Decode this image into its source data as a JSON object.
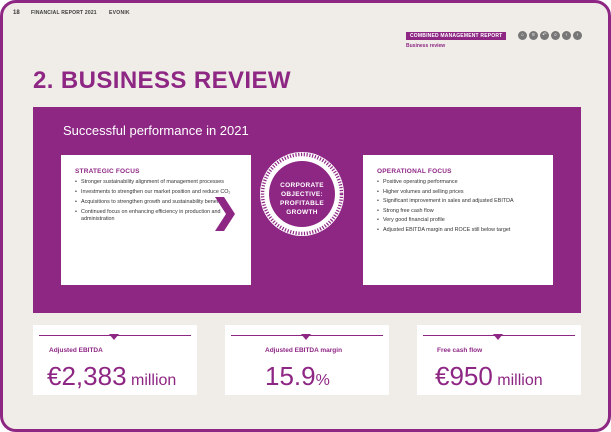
{
  "header": {
    "page_number": "18",
    "doc_title": "FINANCIAL REPORT 2021",
    "brand": "EVONIK",
    "section_badge": "COMBINED MANAGEMENT REPORT",
    "section_sub": "Business review",
    "nav_icons": [
      "home-icon",
      "menu-icon",
      "back-icon",
      "search-icon",
      "previous-icon",
      "next-icon"
    ],
    "nav_glyphs": [
      "⌂",
      "≡",
      "↶",
      "⌕",
      "‹",
      "›"
    ]
  },
  "page_heading": "2. BUSINESS REVIEW",
  "banner": {
    "title": "Successful performance in 2021",
    "strategic": {
      "heading": "STRATEGIC FOCUS",
      "items": [
        "Stronger sustainability alignment of management processes",
        "Investments to strengthen our market position and reduce CO₂",
        "Acquisitions to strengthen growth and sustainability benefits",
        "Continued focus on enhancing efficiency in production and administration"
      ]
    },
    "objective": {
      "line1": "CORPORATE",
      "line2": "OBJECTIVE:",
      "line3": "PROFITABLE",
      "line4": "GROWTH"
    },
    "operational": {
      "heading": "OPERATIONAL FOCUS",
      "items": [
        "Positive operating performance",
        "Higher volumes and selling prices",
        "Significant improvement in sales and adjusted EBITDA",
        "Strong free cash flow",
        "Very good financial profile",
        "Adjusted EBITDA margin and ROCE still below target"
      ]
    }
  },
  "kpis": [
    {
      "label": "Adjusted EBITDA",
      "value": "€2,383",
      "unit": "million"
    },
    {
      "label": "Adjusted EBITDA margin",
      "value": "15.9",
      "unit": "%"
    },
    {
      "label": "Free cash flow",
      "value": "€950",
      "unit": "million"
    }
  ],
  "colors": {
    "accent": "#8e2784",
    "background": "#f0ede8"
  }
}
